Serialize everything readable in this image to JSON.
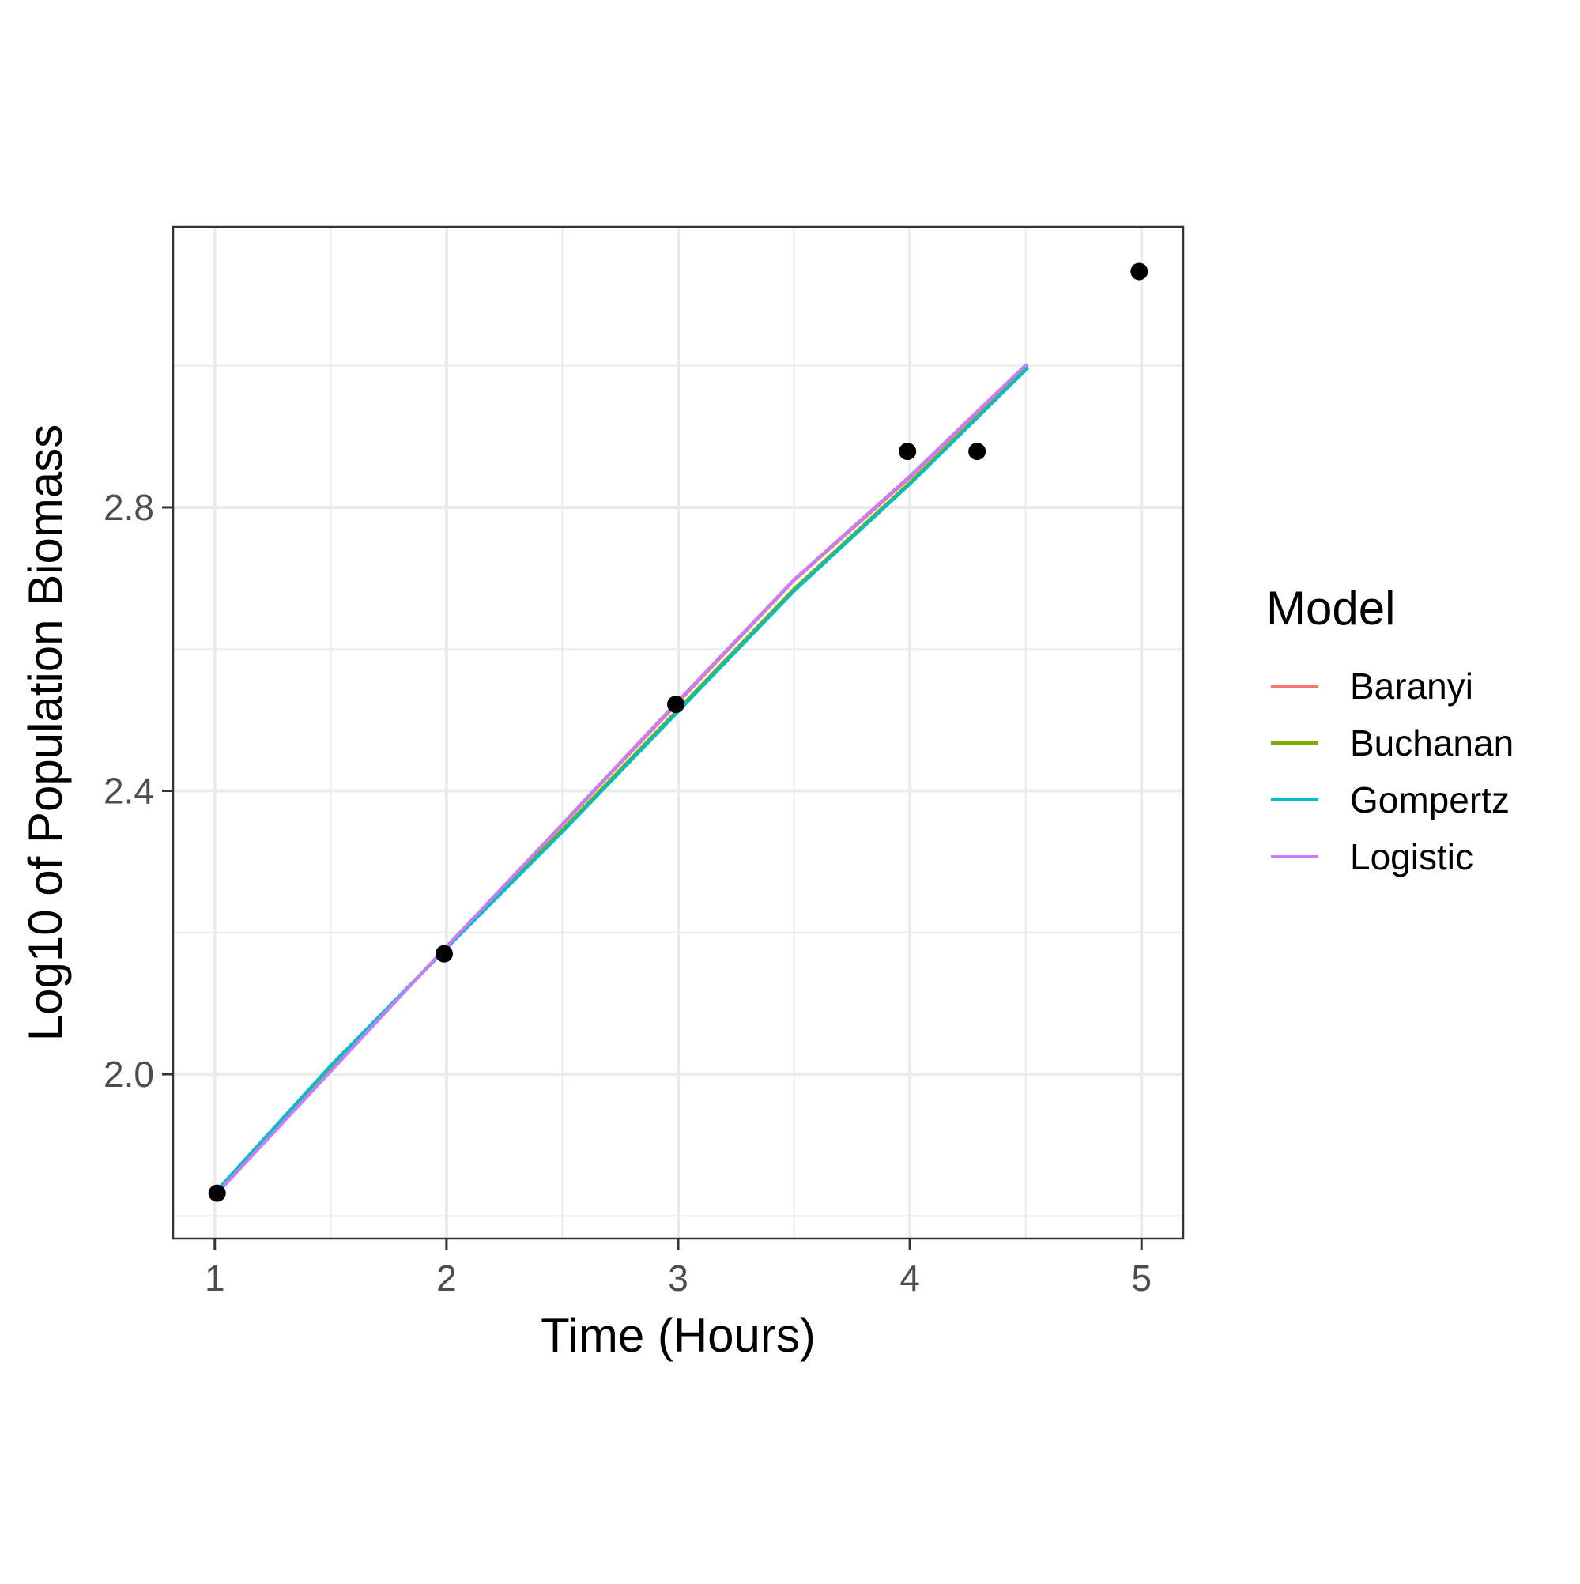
{
  "chart_data": {
    "type": "line",
    "xlabel": "Time (Hours)",
    "ylabel": "Log10 of Population Biomass",
    "xlim": [
      0.82,
      5.18
    ],
    "ylim": [
      1.768,
      3.196
    ],
    "xticks": [
      1,
      2,
      3,
      4,
      5
    ],
    "xtick_labels": [
      "1",
      "2",
      "3",
      "4",
      "5"
    ],
    "yticks": [
      2.0,
      2.4,
      2.8
    ],
    "ytick_labels": [
      "2.0",
      "2.4",
      "2.8"
    ],
    "x_minor": [
      1.5,
      2.5,
      3.5,
      4.5
    ],
    "y_minor": [
      1.8,
      2.2,
      2.6,
      3.0
    ],
    "grid": true,
    "legend": {
      "title": "Model",
      "placement": "right"
    },
    "points": {
      "x": [
        1.01,
        1.99,
        2.99,
        3.99,
        4.29,
        4.99
      ],
      "y": [
        1.832,
        2.17,
        2.522,
        2.879,
        2.879,
        3.133
      ],
      "color": "#000000"
    },
    "series": [
      {
        "name": "Baranyi",
        "color": "#F8766D",
        "x": [
          1.01,
          1.5,
          2.0,
          2.5,
          3.0,
          3.5,
          4.0,
          4.5,
          4.51
        ],
        "y": [
          1.833,
          2.006,
          2.18,
          2.352,
          2.525,
          2.697,
          2.842,
          3.0,
          3.0
        ]
      },
      {
        "name": "Buchanan",
        "color": "#7CAE00",
        "x": [
          1.01,
          1.5,
          2.0,
          2.5,
          3.0,
          3.5,
          4.0,
          4.5,
          4.51
        ],
        "y": [
          1.835,
          2.01,
          2.178,
          2.345,
          2.515,
          2.685,
          2.835,
          2.995,
          2.998
        ]
      },
      {
        "name": "Gompertz",
        "color": "#00BFC4",
        "x": [
          1.01,
          1.5,
          2.0,
          2.5,
          3.0,
          3.5,
          4.0,
          4.5,
          4.51
        ],
        "y": [
          1.836,
          2.012,
          2.178,
          2.342,
          2.512,
          2.682,
          2.833,
          2.994,
          2.998
        ]
      },
      {
        "name": "Logistic",
        "color": "#C77CFF",
        "x": [
          1.01,
          1.5,
          2.0,
          2.5,
          3.0,
          3.5,
          4.0,
          4.5,
          4.51
        ],
        "y": [
          1.832,
          2.004,
          2.18,
          2.353,
          2.527,
          2.698,
          2.844,
          3.001,
          3.001
        ]
      }
    ]
  }
}
